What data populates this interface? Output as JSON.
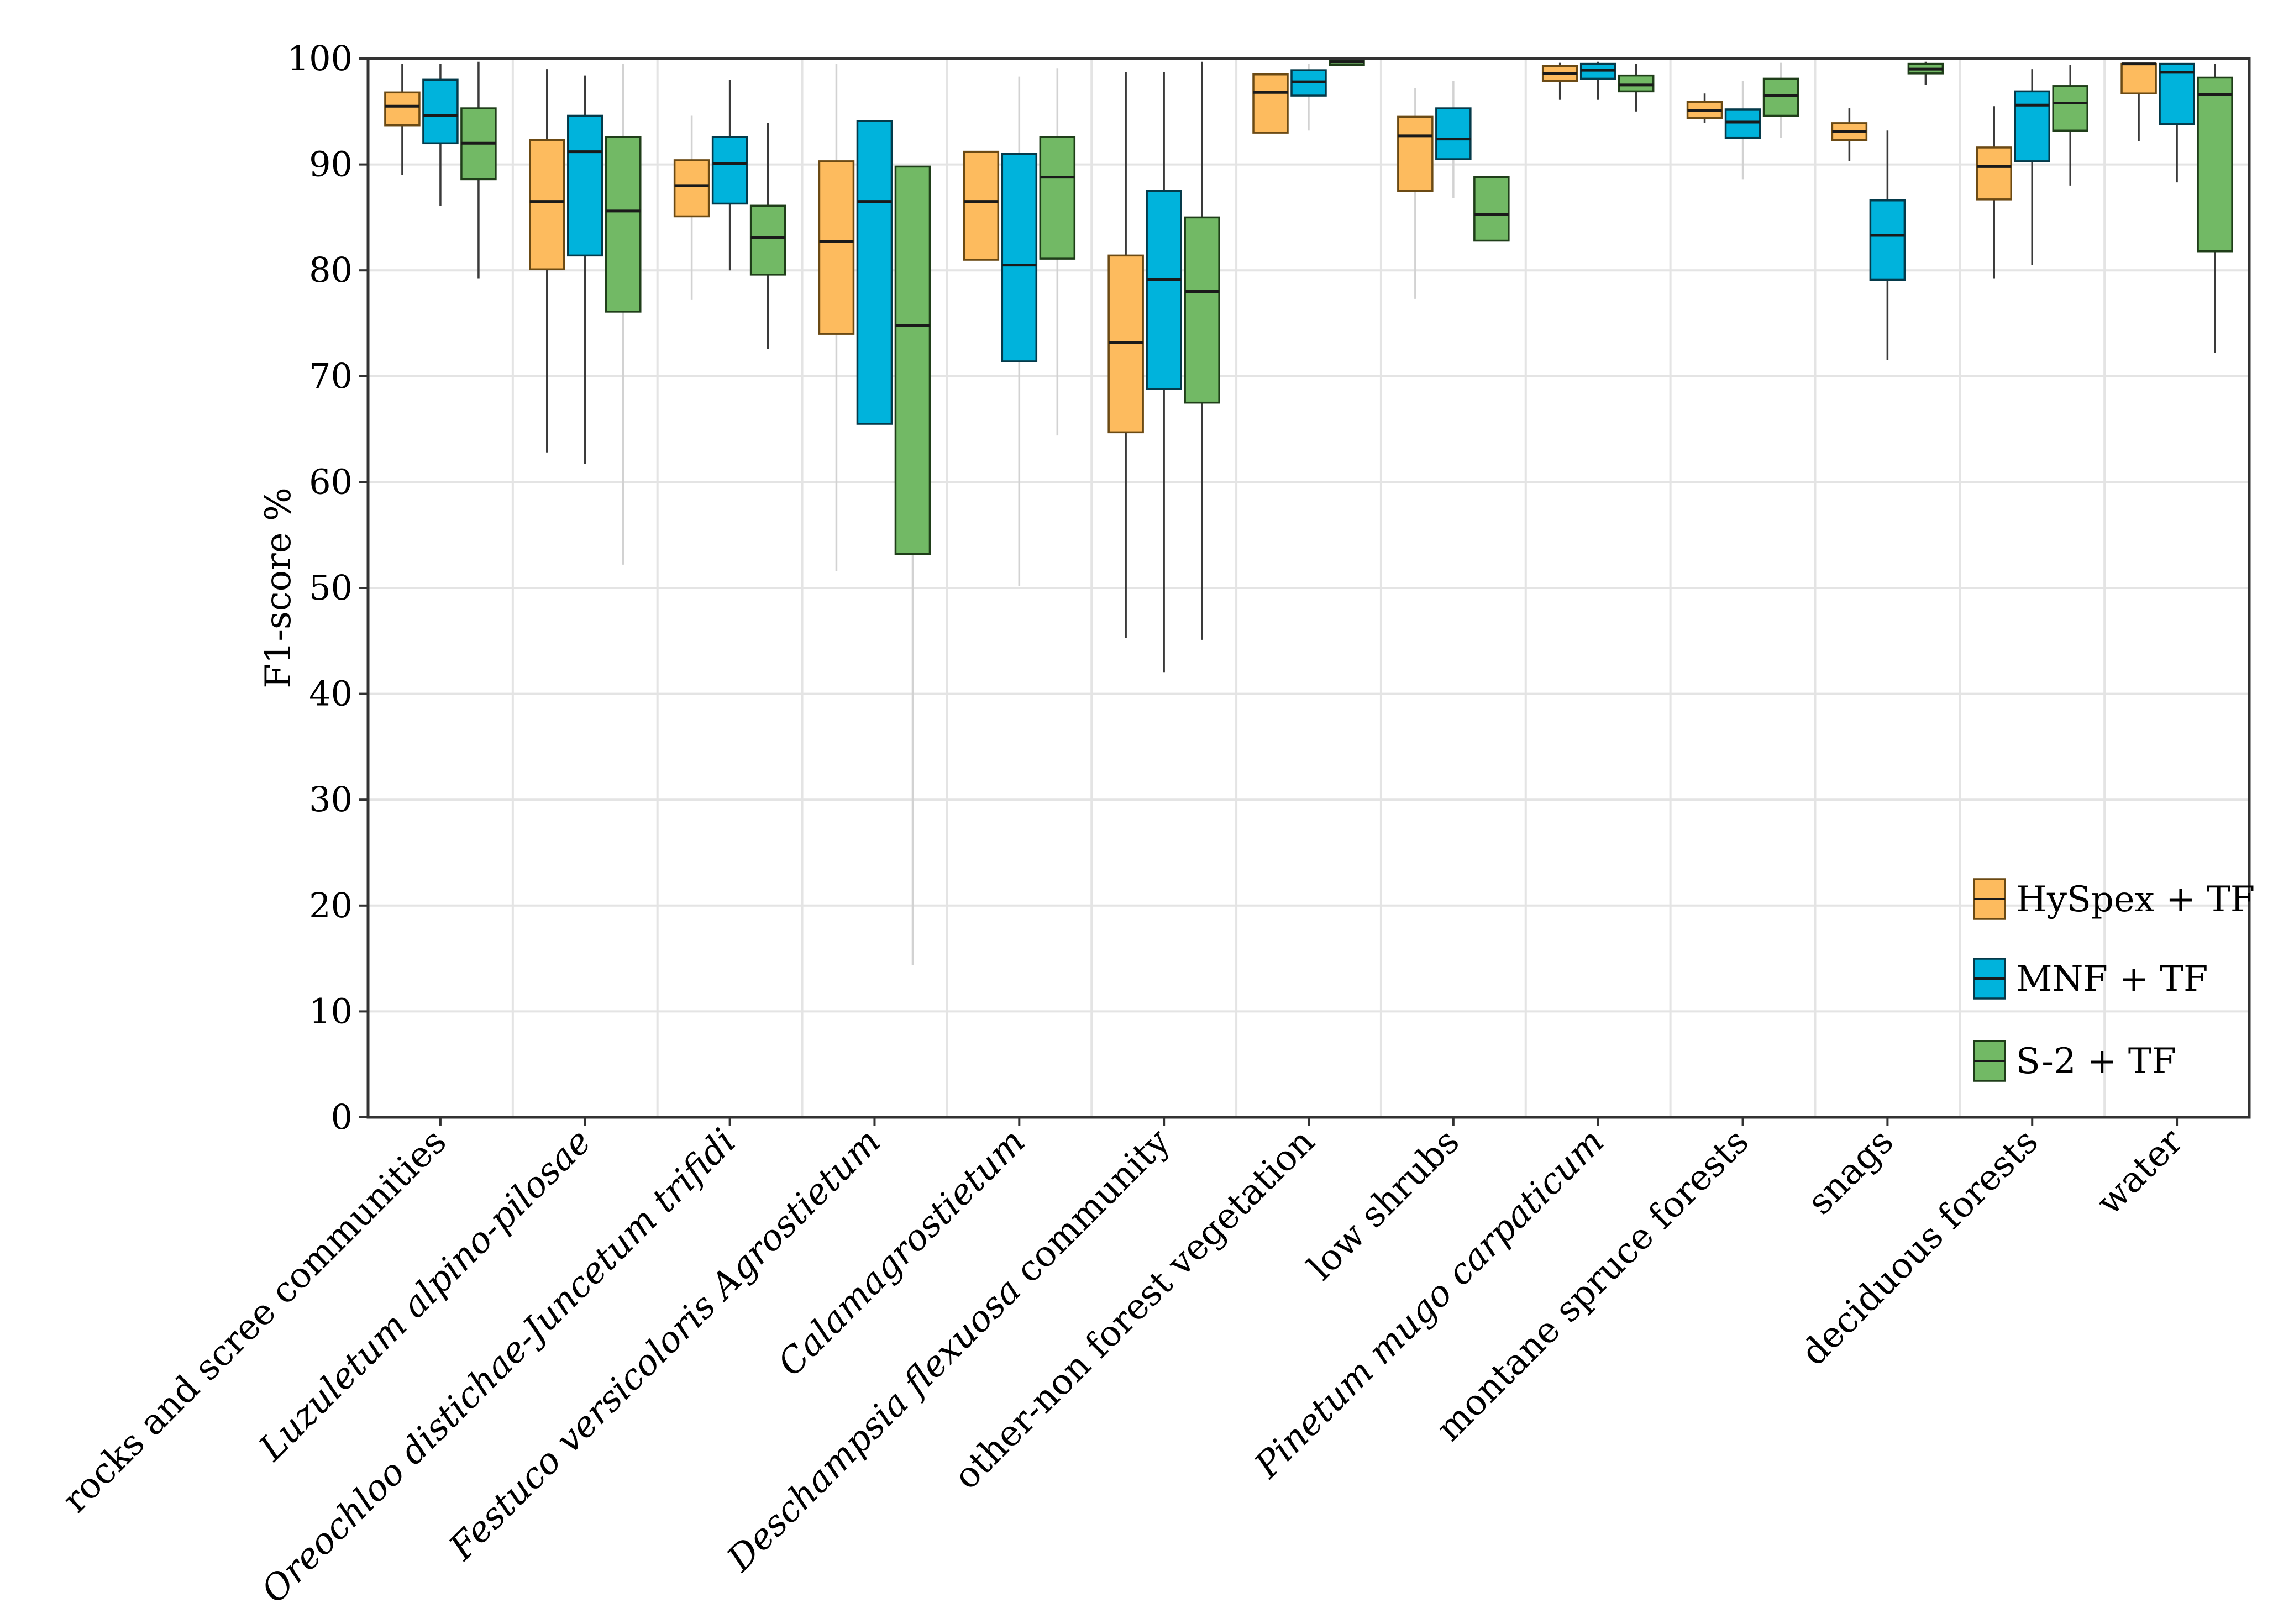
{
  "chart_data": {
    "type": "boxplot",
    "title": "",
    "xlabel": "",
    "ylabel": "F1-score %",
    "ylim": [
      0,
      100
    ],
    "yticks": [
      0,
      10,
      20,
      30,
      40,
      50,
      60,
      70,
      80,
      90,
      100
    ],
    "grid": true,
    "legend_position": "bottom-right",
    "categories": [
      {
        "label": "rocks and scree communities",
        "parts": [
          {
            "t": "rocks and scree communities",
            "i": false
          }
        ]
      },
      {
        "label": "Luzuletum alpino-pilosae",
        "parts": [
          {
            "t": "Luzuletum alpino-pilosae",
            "i": true
          }
        ]
      },
      {
        "label": "Oreochloo distichae-Juncetum trifidi",
        "parts": [
          {
            "t": "Oreochloo distichae-Juncetum trifidi",
            "i": true
          }
        ]
      },
      {
        "label": "Festuco versicoloris Agrostietum",
        "parts": [
          {
            "t": "Festuco versicoloris Agrostietum",
            "i": true
          }
        ]
      },
      {
        "label": "Calamagrostietum",
        "parts": [
          {
            "t": "Calamagrostietum",
            "i": true
          }
        ]
      },
      {
        "label": "Deschampsia flexuosa community",
        "parts": [
          {
            "t": "Deschampsia flexuosa",
            "i": true
          },
          {
            "t": " community",
            "i": false
          }
        ]
      },
      {
        "label": "other-non forest vegetation",
        "parts": [
          {
            "t": "other-non forest vegetation",
            "i": false
          }
        ]
      },
      {
        "label": "low shrubs",
        "parts": [
          {
            "t": "low shrubs",
            "i": false
          }
        ]
      },
      {
        "label": "Pinetum mugo carpaticum",
        "parts": [
          {
            "t": "Pinetum mugo carpaticum",
            "i": true
          }
        ]
      },
      {
        "label": "montane spruce forests",
        "parts": [
          {
            "t": "montane spruce forests",
            "i": false
          }
        ]
      },
      {
        "label": "snags",
        "parts": [
          {
            "t": "snags",
            "i": false
          }
        ]
      },
      {
        "label": "deciduous forests",
        "parts": [
          {
            "t": "deciduous forests",
            "i": false
          }
        ]
      },
      {
        "label": "water",
        "parts": [
          {
            "t": "water",
            "i": false
          }
        ]
      }
    ],
    "series": [
      {
        "name": "HySpex + TF",
        "color": "#FDBB5E",
        "stroke": "#6b4a14",
        "boxes": [
          {
            "min": 89,
            "q1": 93.7,
            "median": 95.5,
            "q3": 96.8,
            "max": 99.5,
            "whisker": "dark"
          },
          {
            "min": 62.8,
            "q1": 80.1,
            "median": 86.5,
            "q3": 92.3,
            "max": 99.0,
            "whisker": "dark"
          },
          {
            "min": 77.2,
            "q1": 85.1,
            "median": 88.0,
            "q3": 90.4,
            "max": 94.6,
            "whisker": "light"
          },
          {
            "min": 51.6,
            "q1": 74.0,
            "median": 82.7,
            "q3": 90.3,
            "max": 99.5,
            "whisker": "light"
          },
          {
            "min": 81.0,
            "q1": 81.0,
            "median": 86.5,
            "q3": 91.2,
            "max": 91.2,
            "whisker": "none"
          },
          {
            "min": 45.3,
            "q1": 64.7,
            "median": 73.2,
            "q3": 81.4,
            "max": 98.7,
            "whisker": "dark"
          },
          {
            "min": 93.0,
            "q1": 93.0,
            "median": 96.8,
            "q3": 98.5,
            "max": 98.5,
            "whisker": "none"
          },
          {
            "min": 77.3,
            "q1": 87.5,
            "median": 92.7,
            "q3": 94.5,
            "max": 97.2,
            "whisker": "light"
          },
          {
            "min": 96.1,
            "q1": 97.9,
            "median": 98.6,
            "q3": 99.3,
            "max": 99.6,
            "whisker": "dark"
          },
          {
            "min": 93.9,
            "q1": 94.4,
            "median": 95.1,
            "q3": 95.9,
            "max": 96.7,
            "whisker": "dark"
          },
          {
            "min": 90.3,
            "q1": 92.3,
            "median": 93.1,
            "q3": 93.9,
            "max": 95.3,
            "whisker": "dark"
          },
          {
            "min": 79.2,
            "q1": 86.7,
            "median": 89.8,
            "q3": 91.6,
            "max": 95.5,
            "whisker": "dark"
          },
          {
            "min": 92.2,
            "q1": 96.7,
            "median": 99.5,
            "q3": 99.5,
            "max": 99.5,
            "whisker": "dark"
          }
        ]
      },
      {
        "name": "MNF + TF",
        "color": "#00B3DC",
        "stroke": "#053a4a",
        "boxes": [
          {
            "min": 86.1,
            "q1": 92.0,
            "median": 94.6,
            "q3": 98.0,
            "max": 99.5,
            "whisker": "dark"
          },
          {
            "min": 61.7,
            "q1": 81.4,
            "median": 91.2,
            "q3": 94.6,
            "max": 98.4,
            "whisker": "dark"
          },
          {
            "min": 80.0,
            "q1": 86.3,
            "median": 90.1,
            "q3": 92.6,
            "max": 98.0,
            "whisker": "dark"
          },
          {
            "min": 65.5,
            "q1": 65.5,
            "median": 86.5,
            "q3": 94.1,
            "max": 94.1,
            "whisker": "none"
          },
          {
            "min": 50.2,
            "q1": 71.4,
            "median": 80.5,
            "q3": 91.0,
            "max": 98.3,
            "whisker": "light"
          },
          {
            "min": 42.0,
            "q1": 68.8,
            "median": 79.1,
            "q3": 87.5,
            "max": 98.7,
            "whisker": "dark"
          },
          {
            "min": 93.2,
            "q1": 96.5,
            "median": 97.8,
            "q3": 98.9,
            "max": 99.5,
            "whisker": "light"
          },
          {
            "min": 86.8,
            "q1": 90.5,
            "median": 92.4,
            "q3": 95.3,
            "max": 97.9,
            "whisker": "light"
          },
          {
            "min": 96.1,
            "q1": 98.1,
            "median": 98.9,
            "q3": 99.5,
            "max": 99.7,
            "whisker": "dark"
          },
          {
            "min": 88.6,
            "q1": 92.5,
            "median": 94.0,
            "q3": 95.2,
            "max": 97.9,
            "whisker": "light"
          },
          {
            "min": 71.5,
            "q1": 79.1,
            "median": 83.3,
            "q3": 86.6,
            "max": 93.2,
            "whisker": "dark"
          },
          {
            "min": 80.5,
            "q1": 90.3,
            "median": 95.6,
            "q3": 96.9,
            "max": 99.0,
            "whisker": "dark"
          },
          {
            "min": 88.3,
            "q1": 93.8,
            "median": 98.7,
            "q3": 99.5,
            "max": 99.5,
            "whisker": "dark"
          }
        ]
      },
      {
        "name": "S-2 + TF",
        "color": "#72B965",
        "stroke": "#1f3e19",
        "boxes": [
          {
            "min": 79.2,
            "q1": 88.6,
            "median": 92.0,
            "q3": 95.3,
            "max": 99.7,
            "whisker": "dark"
          },
          {
            "min": 52.2,
            "q1": 76.1,
            "median": 85.6,
            "q3": 92.6,
            "max": 99.5,
            "whisker": "light"
          },
          {
            "min": 72.6,
            "q1": 79.6,
            "median": 83.1,
            "q3": 86.1,
            "max": 93.9,
            "whisker": "dark"
          },
          {
            "min": 14.4,
            "q1": 53.2,
            "median": 74.8,
            "q3": 89.8,
            "max": 89.8,
            "whisker": "light"
          },
          {
            "min": 64.4,
            "q1": 81.1,
            "median": 88.8,
            "q3": 92.6,
            "max": 99.1,
            "whisker": "light"
          },
          {
            "min": 45.1,
            "q1": 67.5,
            "median": 78.0,
            "q3": 85.0,
            "max": 99.7,
            "whisker": "dark"
          },
          {
            "min": 99.4,
            "q1": 99.4,
            "median": 99.7,
            "q3": 99.9,
            "max": 99.9,
            "whisker": "none"
          },
          {
            "min": 82.8,
            "q1": 82.8,
            "median": 85.3,
            "q3": 88.8,
            "max": 88.8,
            "whisker": "none"
          },
          {
            "min": 95.0,
            "q1": 96.9,
            "median": 97.5,
            "q3": 98.4,
            "max": 99.5,
            "whisker": "dark"
          },
          {
            "min": 92.5,
            "q1": 94.6,
            "median": 96.5,
            "q3": 98.1,
            "max": 99.6,
            "whisker": "light"
          },
          {
            "min": 97.5,
            "q1": 98.6,
            "median": 99.0,
            "q3": 99.5,
            "max": 99.7,
            "whisker": "dark"
          },
          {
            "min": 88.0,
            "q1": 93.2,
            "median": 95.8,
            "q3": 97.4,
            "max": 99.4,
            "whisker": "dark"
          },
          {
            "min": 72.2,
            "q1": 81.8,
            "median": 96.6,
            "q3": 98.2,
            "max": 99.5,
            "whisker": "dark"
          }
        ]
      }
    ]
  }
}
